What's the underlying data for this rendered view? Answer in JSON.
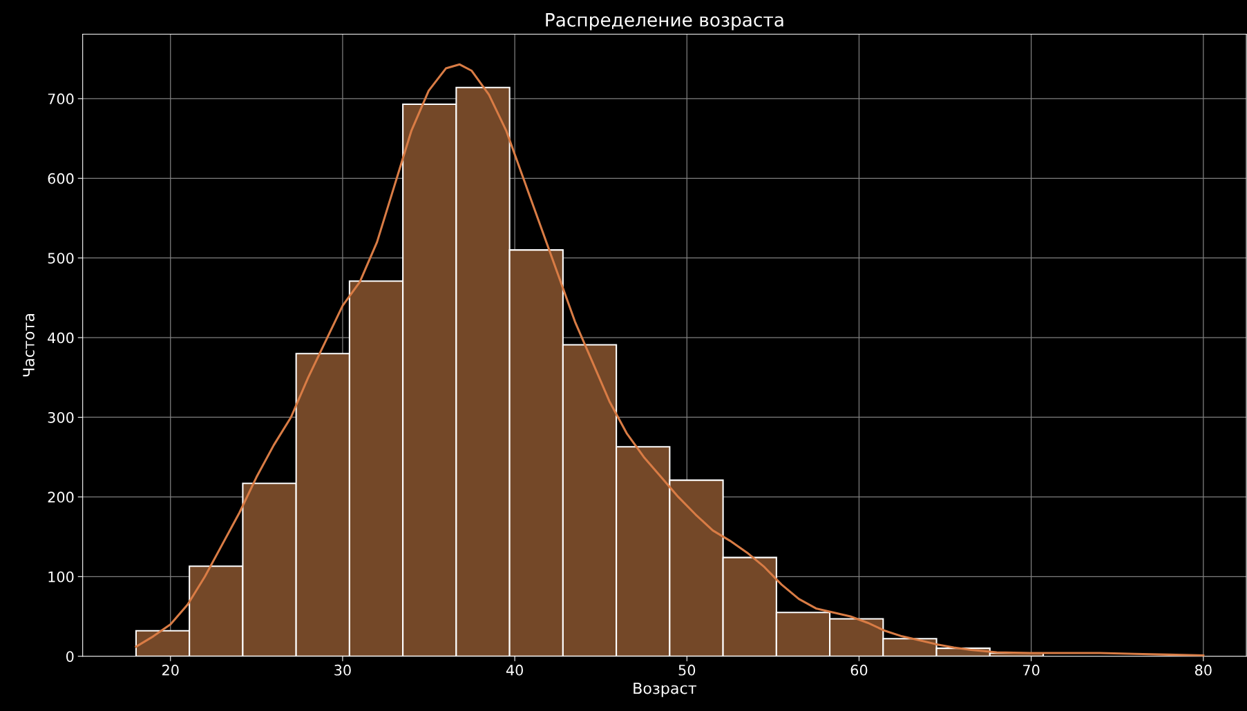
{
  "chart_data": {
    "type": "histogram",
    "title": "Распределение возраста",
    "xlabel": "Возраст",
    "ylabel": "Частота",
    "bins": [
      18.0,
      21.1,
      24.2,
      27.3,
      30.4,
      33.5,
      36.6,
      39.7,
      42.8,
      45.9,
      49.0,
      52.1,
      55.2,
      58.3,
      61.4,
      64.5,
      67.6,
      70.7,
      73.8,
      76.9,
      80.0
    ],
    "values": [
      32,
      113,
      217,
      380,
      471,
      693,
      714,
      510,
      391,
      263,
      221,
      124,
      55,
      47,
      22,
      10,
      4,
      null,
      null,
      null
    ],
    "color": "#744828",
    "series": [
      {
        "type": "line",
        "color": "#d97c45",
        "x": [
          18,
          19,
          20,
          21,
          22,
          23,
          24,
          25,
          26,
          27,
          28,
          29,
          30,
          31,
          32,
          33,
          34,
          35,
          36,
          36.8,
          37.5,
          38.5,
          39.5,
          40.5,
          41.5,
          42.5,
          43.5,
          44.5,
          45.5,
          46.5,
          47.5,
          48.5,
          49.5,
          50.5,
          51.5,
          52.5,
          53.5,
          54.5,
          55.5,
          56.5,
          57.5,
          58.5,
          59.5,
          60.5,
          61.5,
          62.5,
          63.5,
          64.5,
          65.5,
          66.5,
          68,
          70,
          72,
          74,
          76,
          78,
          80
        ],
        "values": [
          12,
          25,
          40,
          65,
          100,
          140,
          180,
          225,
          265,
          300,
          350,
          395,
          440,
          470,
          520,
          590,
          660,
          710,
          738,
          743,
          735,
          705,
          660,
          600,
          540,
          480,
          420,
          370,
          320,
          280,
          250,
          225,
          200,
          178,
          158,
          145,
          130,
          112,
          90,
          72,
          60,
          55,
          50,
          42,
          32,
          25,
          20,
          15,
          11,
          8,
          5,
          4,
          4,
          4,
          3,
          2,
          1
        ]
      }
    ],
    "xlim": [
      14.9,
      82.5
    ],
    "ylim": [
      0,
      781
    ],
    "xticks": [
      20,
      30,
      40,
      50,
      60,
      70,
      80
    ],
    "yticks": [
      0,
      100,
      200,
      300,
      400,
      500,
      600,
      700
    ],
    "grid": true
  }
}
